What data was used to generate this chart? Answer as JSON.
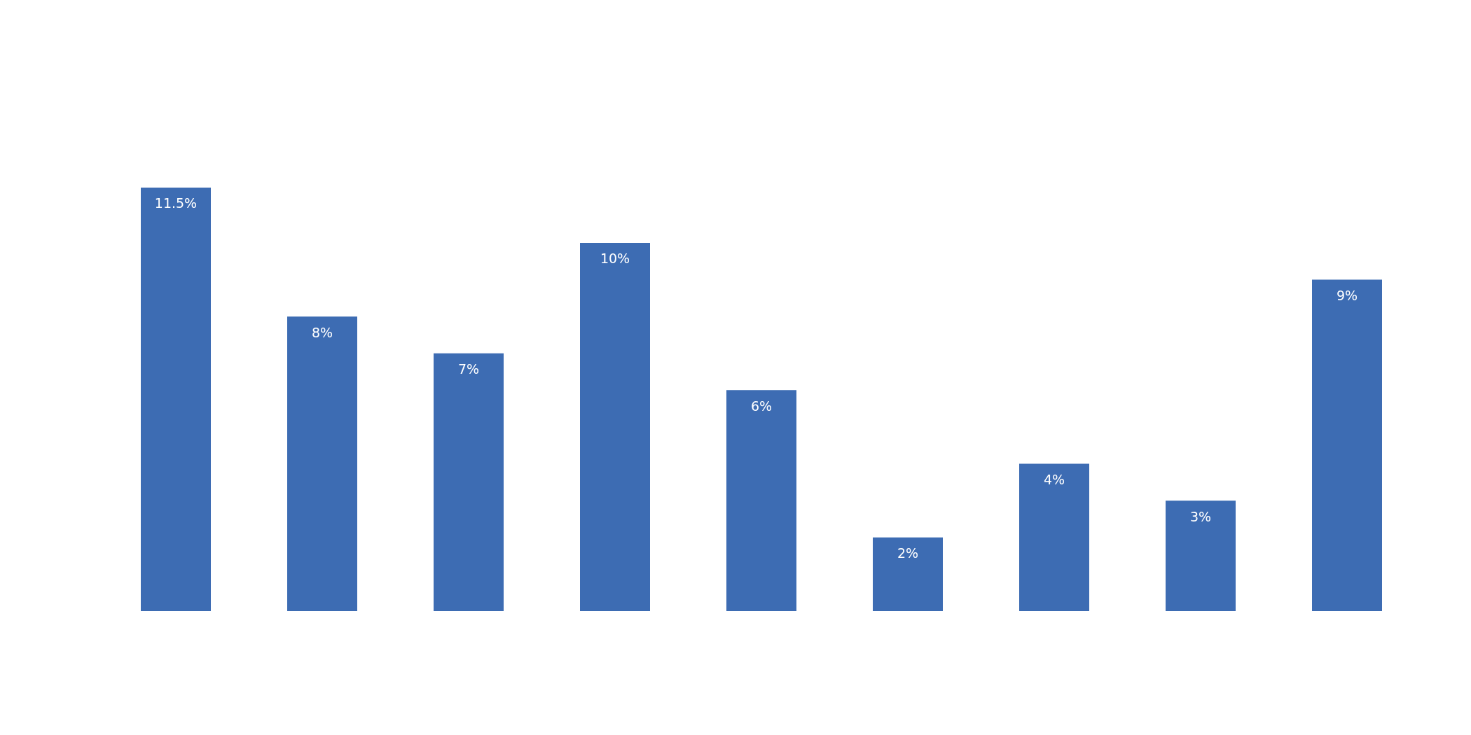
{
  "chart_data": {
    "type": "bar",
    "categories": [
      null,
      null,
      null,
      null,
      null,
      null,
      null,
      null,
      null
    ],
    "values": [
      11.5,
      8,
      7,
      10,
      6,
      2,
      4,
      3,
      9
    ],
    "value_labels": [
      "11.5%",
      "8%",
      "7%",
      "10%",
      "6%",
      "2%",
      "4%",
      "3%",
      "9%"
    ],
    "color": "#3d6cb3",
    "tick_labels": false,
    "grid": false,
    "legend": false
  }
}
